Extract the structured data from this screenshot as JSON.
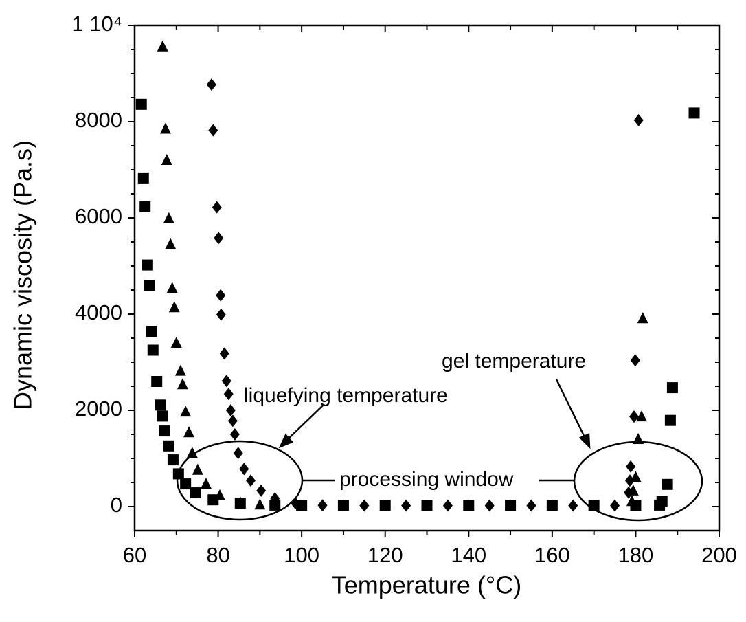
{
  "chart_data": {
    "type": "scatter",
    "xlabel": "Temperature (°C)",
    "ylabel": "Dynamic viscosity (Pa.s)",
    "annotations": [
      "liquefying temperature",
      "gel temperature",
      "processing window"
    ],
    "xlim": [
      60,
      200
    ],
    "xticks": [
      60,
      80,
      100,
      120,
      140,
      160,
      180,
      200
    ],
    "ylim": [
      -500,
      10000
    ],
    "yticks": [
      0,
      2000,
      4000,
      6000,
      8000,
      {
        "value": 10000,
        "label": "1 10⁴"
      }
    ],
    "series": [
      {
        "marker": "square",
        "color": "#000000",
        "x": [
          61.6,
          62.1,
          62.5,
          63.1,
          63.5,
          64.1,
          64.4,
          65.3,
          66.1,
          66.6,
          67.2,
          68.2,
          69.2,
          70.5,
          72.2,
          74.6,
          78.8,
          85.3,
          93.6,
          100,
          110,
          120,
          130,
          140,
          150,
          160,
          170,
          180,
          185.7,
          186.3,
          187.6,
          188.3,
          188.8,
          194
        ],
        "values": [
          8360,
          6830,
          6230,
          5020,
          4590,
          3640,
          3250,
          2600,
          2110,
          1880,
          1570,
          1260,
          970,
          680,
          470,
          285,
          140,
          70,
          30,
          20,
          20,
          20,
          20,
          20,
          20,
          20,
          20,
          20,
          30,
          110,
          460,
          1790,
          2470,
          8180
        ]
      },
      {
        "marker": "triangle",
        "color": "#000000",
        "x": [
          66.7,
          67.4,
          67.7,
          68.2,
          68.6,
          69,
          69.5,
          70,
          71,
          71.5,
          72.2,
          73,
          73.8,
          75.1,
          77.1,
          80.4,
          85.3,
          90,
          100,
          110,
          120,
          130,
          140,
          150,
          160,
          170,
          179.1,
          179.4,
          180,
          180.6,
          181.4,
          181.7
        ],
        "values": [
          9560,
          7850,
          7200,
          5990,
          5450,
          4540,
          4140,
          3400,
          2820,
          2540,
          1970,
          1540,
          1110,
          760,
          470,
          230,
          85,
          40,
          20,
          20,
          20,
          20,
          20,
          20,
          20,
          20,
          110,
          330,
          610,
          1400,
          1870,
          3910
        ]
      },
      {
        "marker": "diamond",
        "color": "#000000",
        "x": [
          78.4,
          78.8,
          79.7,
          80.1,
          80.6,
          80.7,
          81.5,
          82,
          82.5,
          83,
          83.5,
          84,
          84.8,
          86.2,
          87.8,
          90.3,
          93.6,
          98.5,
          105,
          115,
          125,
          135,
          145,
          155,
          165,
          175,
          178.3,
          178.6,
          178.8,
          179.6,
          179.9,
          180.7
        ],
        "values": [
          8770,
          7820,
          6220,
          5580,
          4390,
          3990,
          3180,
          2610,
          2340,
          2000,
          1780,
          1500,
          1110,
          780,
          540,
          330,
          170,
          70,
          25,
          20,
          20,
          20,
          20,
          20,
          20,
          20,
          290,
          540,
          830,
          1870,
          3040,
          8030
        ]
      }
    ]
  }
}
